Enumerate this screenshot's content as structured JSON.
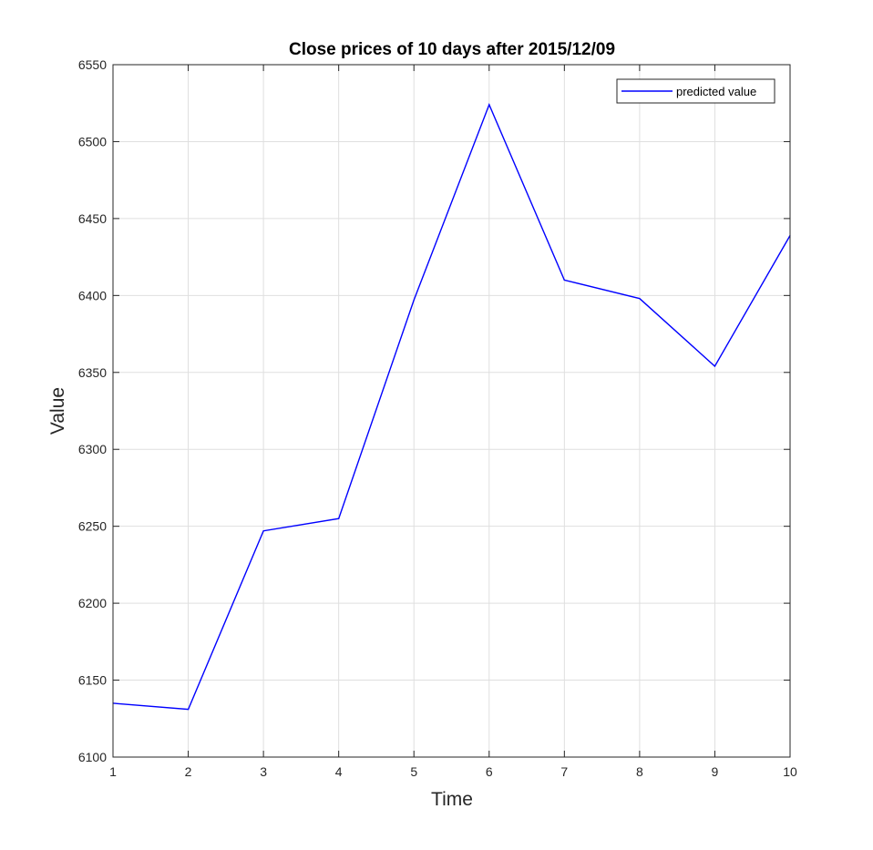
{
  "chart_data": {
    "type": "line",
    "title": "Close prices of 10 days after 2015/12/09",
    "xlabel": "Time",
    "ylabel": "Value",
    "xlim": [
      1,
      10
    ],
    "ylim": [
      6100,
      6550
    ],
    "xticks": [
      1,
      2,
      3,
      4,
      5,
      6,
      7,
      8,
      9,
      10
    ],
    "yticks": [
      6100,
      6150,
      6200,
      6250,
      6300,
      6350,
      6400,
      6450,
      6500,
      6550
    ],
    "grid": true,
    "legend_position": "top-right",
    "series": [
      {
        "name": "predicted value",
        "color": "#0000ff",
        "x": [
          1,
          2,
          3,
          4,
          5,
          6,
          7,
          8,
          9,
          10
        ],
        "y": [
          6135,
          6131,
          6247,
          6255,
          6397,
          6524,
          6410,
          6398,
          6354,
          6439
        ]
      }
    ]
  }
}
